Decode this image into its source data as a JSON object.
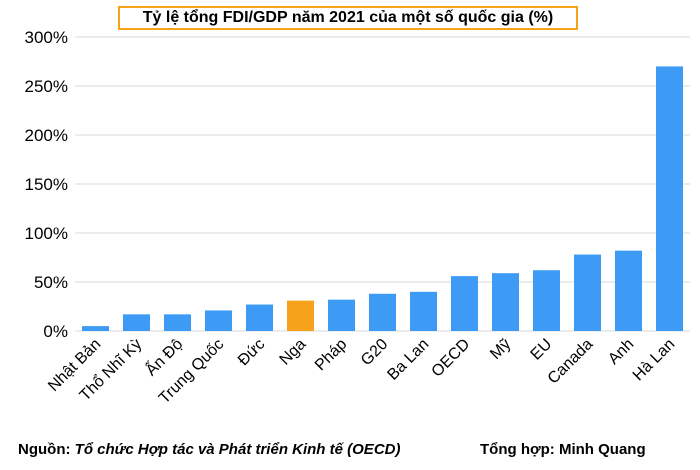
{
  "chart_data": {
    "type": "bar",
    "title": "Tỷ lệ tổng FDI/GDP năm 2021 của một số quốc gia (%)",
    "categories": [
      "Nhật Bản",
      "Thổ Nhĩ Kỳ",
      "Ấn Độ",
      "Trung Quốc",
      "Đức",
      "Nga",
      "Pháp",
      "G20",
      "Ba Lan",
      "OECD",
      "Mỹ",
      "EU",
      "Canada",
      "Anh",
      "Hà Lan"
    ],
    "values": [
      5,
      17,
      17,
      21,
      27,
      31,
      32,
      38,
      40,
      56,
      59,
      62,
      78,
      82,
      270
    ],
    "highlight_category": "Nga",
    "ylim": [
      0,
      300
    ],
    "yticks": [
      "0%",
      "50%",
      "100%",
      "150%",
      "200%",
      "250%",
      "300%"
    ],
    "ytick_values": [
      0,
      50,
      100,
      150,
      200,
      250,
      300
    ],
    "grid": true,
    "colors": {
      "bar": "#3d9bf5",
      "highlight": "#f7a21b",
      "grid": "#d9d9d9",
      "title_border": "#f7a21b"
    }
  },
  "footer": {
    "source_label": "Nguồn:",
    "source_text": "Tổ chức Hợp tác và Phát triển Kinh tế (OECD)",
    "compiled_by": "Tổng hợp: Minh Quang"
  }
}
